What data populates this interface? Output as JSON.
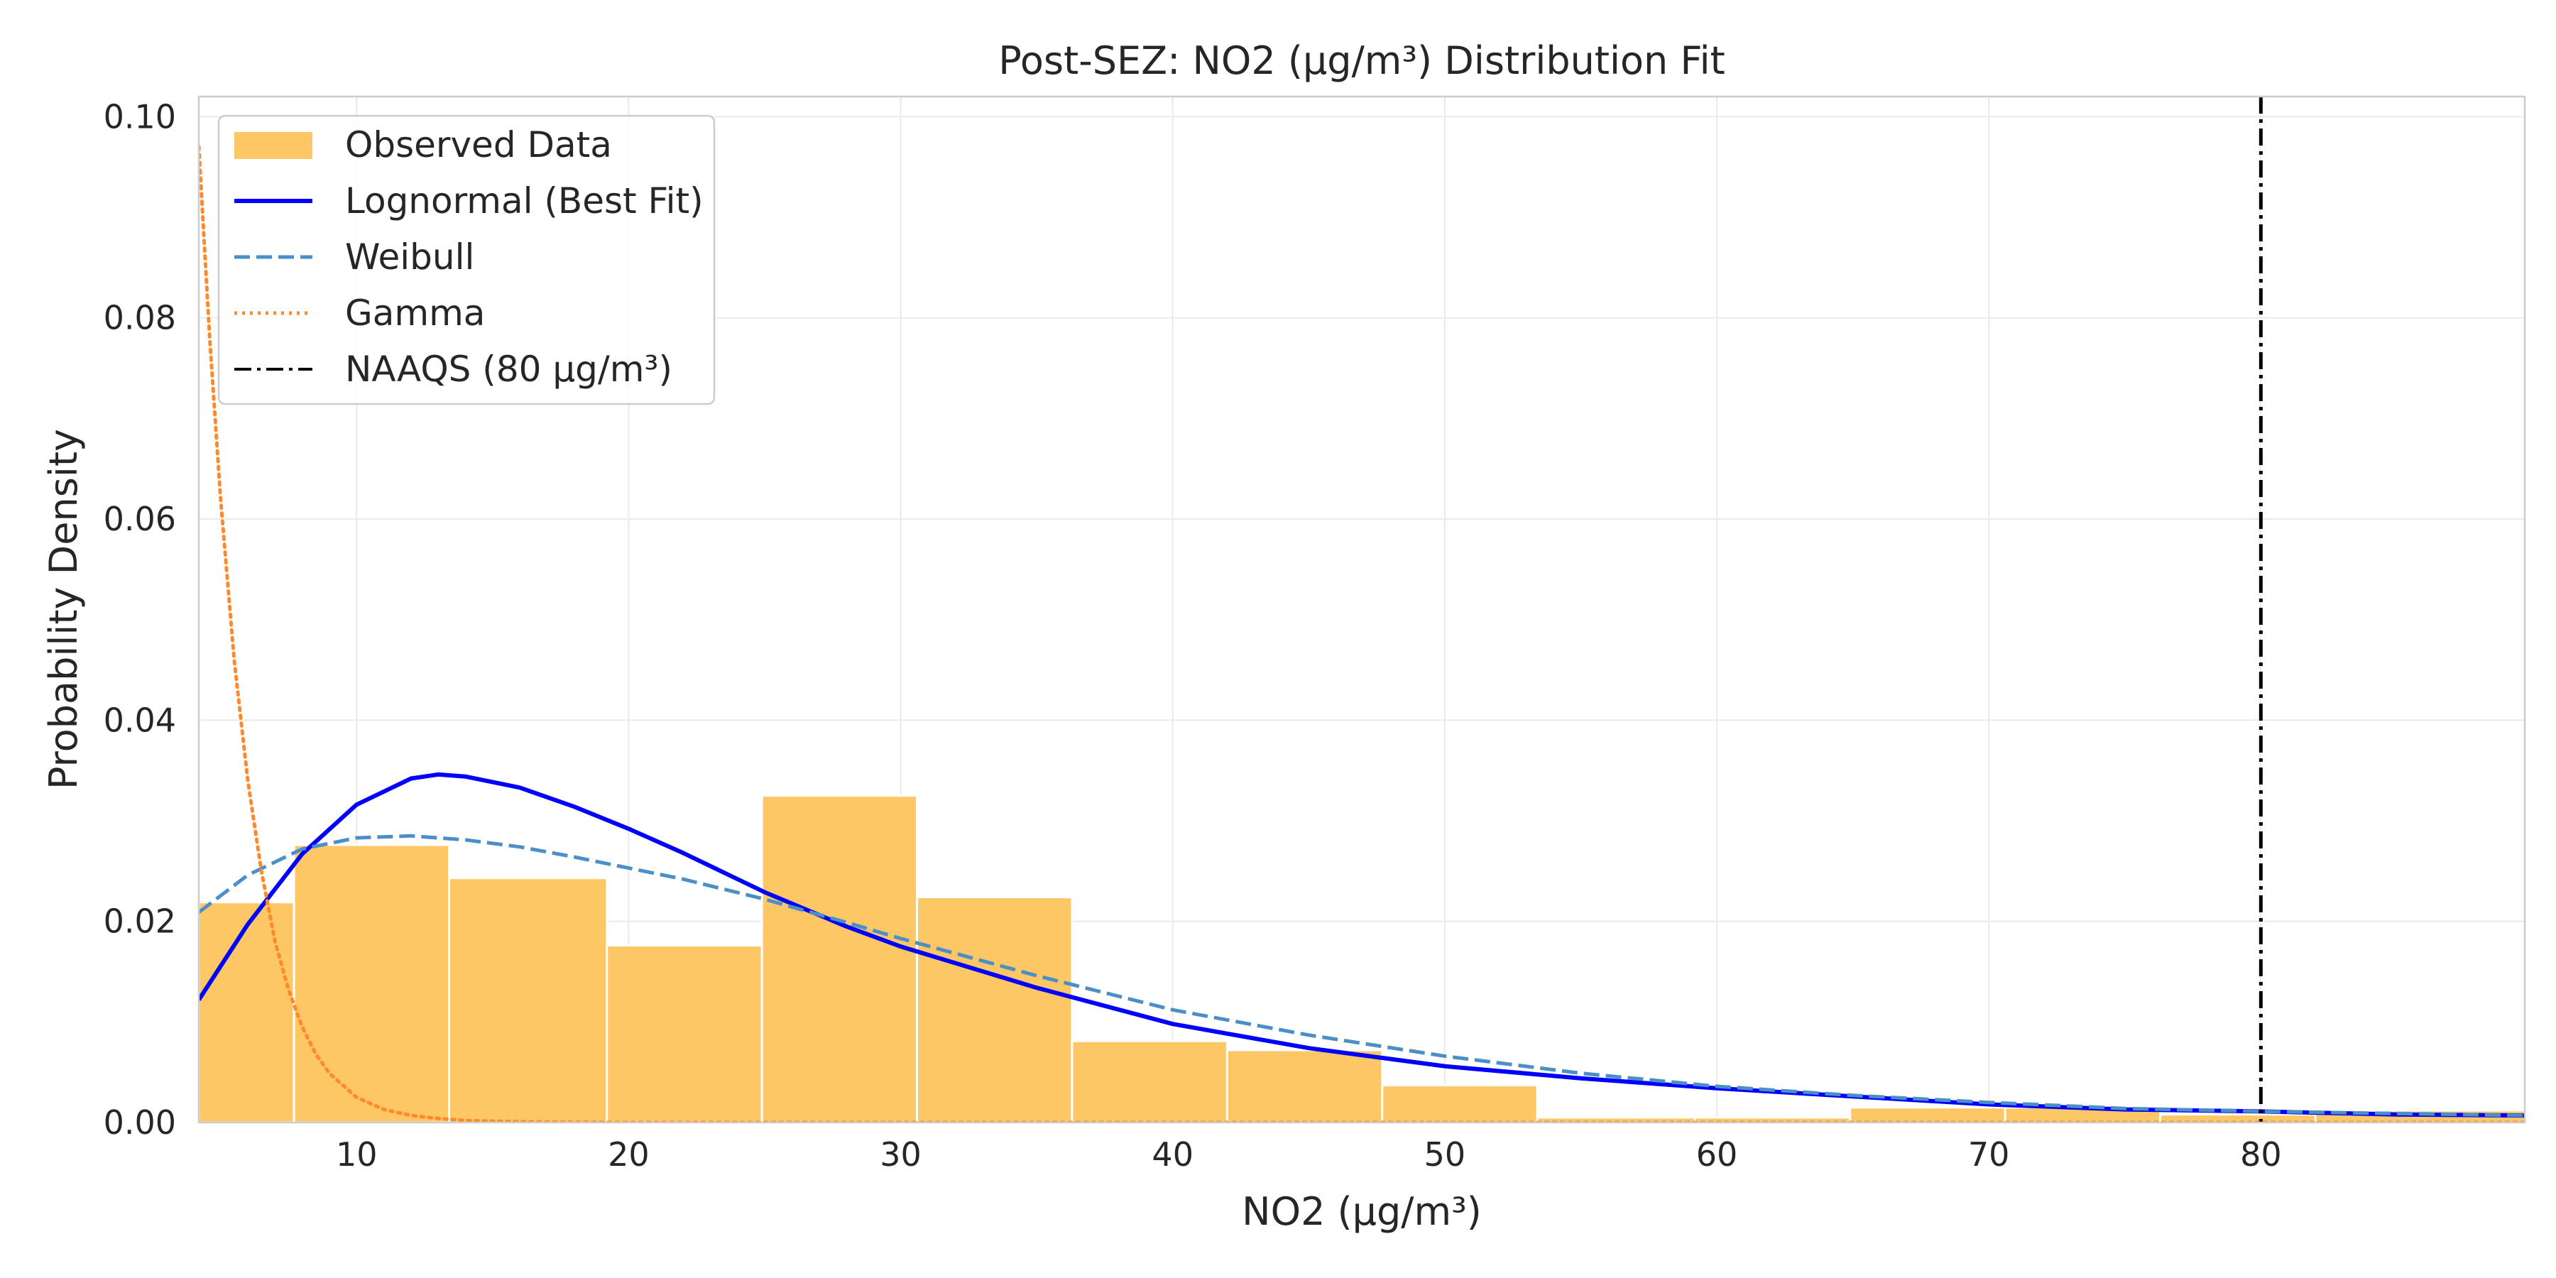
{
  "chart_data": {
    "type": "bar",
    "title": "Post-SEZ: NO2 (µg/m³) Distribution Fit",
    "xlabel": "NO2 (µg/m³)",
    "ylabel": "Probability Density",
    "xlim": [
      4.2,
      89.7
    ],
    "ylim": [
      0,
      0.102
    ],
    "xticks": [
      10,
      20,
      30,
      40,
      50,
      60,
      70,
      80
    ],
    "yticks": [
      0.0,
      0.02,
      0.04,
      0.06,
      0.08,
      0.1
    ],
    "xtick_labels": [
      "10",
      "20",
      "30",
      "40",
      "50",
      "60",
      "70",
      "80"
    ],
    "ytick_labels": [
      "0.00",
      "0.02",
      "0.04",
      "0.06",
      "0.08",
      "0.10"
    ],
    "grid": true,
    "legend_position": "top-left",
    "histogram": {
      "name": "Observed Data",
      "color": "#fdc766",
      "bin_edges": [
        4.2,
        7.7,
        13.4,
        19.2,
        24.9,
        30.6,
        36.3,
        42.0,
        47.7,
        53.4,
        59.2,
        64.9,
        70.6,
        76.3,
        82.0,
        89.7
      ],
      "density": [
        0.0219,
        0.0276,
        0.0243,
        0.0176,
        0.0325,
        0.0224,
        0.0081,
        0.0072,
        0.0037,
        0.0005,
        0.0005,
        0.0015,
        0.0015,
        0.0008,
        0.0012
      ]
    },
    "series": [
      {
        "name": "Lognormal (Best Fit)",
        "color": "#0000ff",
        "style": "solid",
        "x": [
          4.2,
          6,
          8,
          10,
          12,
          13,
          14,
          16,
          18,
          20,
          22,
          25,
          28,
          30,
          35,
          40,
          45,
          50,
          55,
          60,
          65,
          70,
          75,
          80,
          85,
          89.7
        ],
        "y": [
          0.0122,
          0.0197,
          0.0267,
          0.0316,
          0.0342,
          0.0346,
          0.0344,
          0.0333,
          0.0314,
          0.0292,
          0.0268,
          0.0229,
          0.0195,
          0.0175,
          0.0134,
          0.0098,
          0.0074,
          0.0056,
          0.0044,
          0.0034,
          0.0026,
          0.0018,
          0.0013,
          0.0011,
          0.0008,
          0.0007
        ]
      },
      {
        "name": "Weibull",
        "color": "#4b8fc8",
        "style": "dashed",
        "x": [
          4.2,
          6,
          8,
          10,
          12,
          14,
          16,
          18,
          20,
          22,
          25,
          28,
          30,
          35,
          40,
          45,
          50,
          55,
          60,
          65,
          70,
          75,
          80,
          85,
          89.7
        ],
        "y": [
          0.0209,
          0.0246,
          0.0272,
          0.0283,
          0.0285,
          0.0281,
          0.0274,
          0.0264,
          0.0253,
          0.0242,
          0.0222,
          0.0199,
          0.0183,
          0.0146,
          0.0112,
          0.0087,
          0.0066,
          0.0049,
          0.0036,
          0.0027,
          0.002,
          0.0014,
          0.0011,
          0.0009,
          0.0007
        ]
      },
      {
        "name": "Gamma",
        "color": "#ff8a2b",
        "style": "dotted",
        "x": [
          4.2,
          4.6,
          5.0,
          5.5,
          6.0,
          6.5,
          7.0,
          7.5,
          8.0,
          8.5,
          9.0,
          10,
          11,
          12,
          13,
          14,
          16,
          18,
          20,
          30,
          40,
          60,
          89.7
        ],
        "y": [
          0.097,
          0.078,
          0.062,
          0.046,
          0.034,
          0.025,
          0.018,
          0.0132,
          0.0095,
          0.0068,
          0.0049,
          0.0025,
          0.0013,
          0.0007,
          0.0004,
          0.0002,
          8e-05,
          3e-05,
          1e-05,
          0,
          0,
          0,
          0
        ]
      }
    ],
    "vlines": [
      {
        "name": "NAAQS (80 µg/m³)",
        "x": 80,
        "color": "#000000",
        "style": "dashdot"
      }
    ],
    "legend": [
      "Observed Data",
      "Lognormal (Best Fit)",
      "Weibull",
      "Gamma",
      "NAAQS (80 µg/m³)"
    ]
  }
}
